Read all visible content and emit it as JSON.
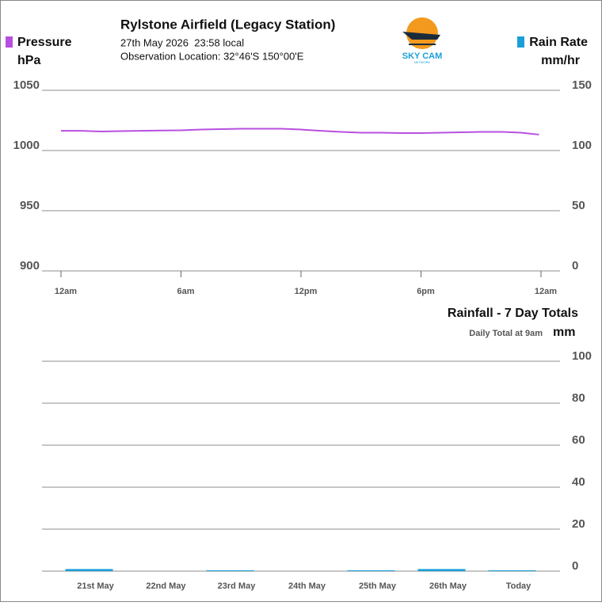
{
  "header": {
    "title": "Rylstone Airfield (Legacy Station)",
    "date": "27th May 2026  23:58 local",
    "location": "Observation Location: 32°46'S 150°00'E",
    "logo": "SKY CAM",
    "logo_sub": "NETWORK"
  },
  "chart_data": [
    {
      "type": "line",
      "ylabel": "hPa",
      "y2label": "mm/hr",
      "x": [
        0,
        1,
        2,
        3,
        4,
        5,
        6,
        7,
        8,
        9,
        10,
        11,
        12,
        13,
        14,
        15,
        16,
        17,
        18,
        19,
        20,
        21,
        22,
        23,
        23.9
      ],
      "xlim": [
        0,
        24
      ],
      "xticks": [
        {
          "value": 0,
          "label": "12am"
        },
        {
          "value": 6,
          "label": "6am"
        },
        {
          "value": 12,
          "label": "12pm"
        },
        {
          "value": 18,
          "label": "6pm"
        },
        {
          "value": 24,
          "label": "12am"
        }
      ],
      "ylim": [
        900,
        1050
      ],
      "yticks": [
        1050,
        1000,
        950,
        900
      ],
      "y2lim": [
        0,
        150
      ],
      "y2ticks": [
        150,
        100,
        50,
        0
      ],
      "grid": true,
      "series": [
        {
          "name": "Pressure",
          "color": "#b94fe0",
          "values": [
            1016.4,
            1016.4,
            1015.8,
            1016.1,
            1016.4,
            1016.6,
            1016.8,
            1017.4,
            1017.8,
            1018.1,
            1018.1,
            1018.1,
            1017.4,
            1016.4,
            1015.5,
            1014.8,
            1014.8,
            1014.5,
            1014.5,
            1014.8,
            1015.1,
            1015.5,
            1015.5,
            1014.8,
            1013.2
          ]
        },
        {
          "name": "Rain Rate",
          "color": "#1a9fd8",
          "axis": "y2",
          "values": [
            null,
            null,
            null,
            null,
            null,
            null,
            null,
            null,
            null,
            null,
            null,
            null,
            null,
            null,
            null,
            null,
            null,
            null,
            null,
            null,
            null,
            null,
            null,
            null,
            null
          ]
        }
      ]
    },
    {
      "type": "bar",
      "title": "Rainfall - 7 Day Totals",
      "subtitle": "Daily Total at 9am",
      "y2label": "mm",
      "categories": [
        "21st May",
        "22nd May",
        "23rd May",
        "24th May",
        "25th May",
        "26th May",
        "Today"
      ],
      "values": [
        1.0,
        0,
        0.4,
        0,
        0.4,
        1.0,
        0.4
      ],
      "color": "#1a9fd8",
      "ylim": [
        0,
        100
      ],
      "yticks": [
        100,
        80,
        60,
        40,
        20,
        0
      ],
      "grid": true
    }
  ]
}
